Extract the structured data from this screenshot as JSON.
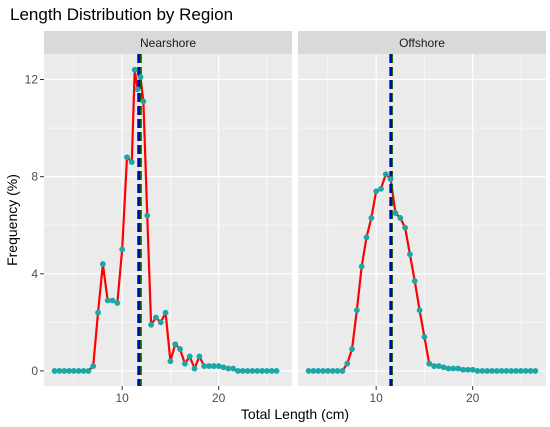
{
  "chart_data": {
    "type": "line",
    "title": "Length Distribution by Region",
    "xlabel": "Total Length (cm)",
    "ylabel": "Frequency (%)",
    "xlim": [
      1.9,
      27.6
    ],
    "ylim": [
      -0.62,
      13.05
    ],
    "x_ticks": [
      10,
      20
    ],
    "y_ticks": [
      0,
      4,
      8,
      12
    ],
    "colors": {
      "panel_bg": "#EBEBEB",
      "strip_bg": "#D9D9D9",
      "grid": "#FFFFFF",
      "line": "#FF0000",
      "points": "#1BA7A7",
      "mean_line": "#0000CC",
      "median_line": "#006400"
    },
    "panels": [
      {
        "label": "Nearshore",
        "mean": 11.7,
        "median": 11.9,
        "x": [
          3,
          3.5,
          4,
          4.5,
          5,
          5.5,
          6,
          6.5,
          7,
          7.5,
          8,
          8.5,
          9,
          9.5,
          10,
          10.5,
          11,
          11.3,
          11.6,
          11.9,
          12.2,
          12.6,
          13,
          13.5,
          14,
          14.5,
          15,
          15.5,
          16,
          16.5,
          17,
          17.5,
          18,
          18.5,
          19,
          19.5,
          20,
          20.5,
          21,
          21.5,
          22,
          22.5,
          23,
          23.5,
          24,
          24.5,
          25,
          25.5,
          26
        ],
        "y": [
          0,
          0,
          0,
          0,
          0,
          0,
          0,
          0,
          0.2,
          2.4,
          4.4,
          2.9,
          2.9,
          2.8,
          5.0,
          8.8,
          8.6,
          12.4,
          11.6,
          12.1,
          11.1,
          6.4,
          1.9,
          2.2,
          2.0,
          2.4,
          0.4,
          1.1,
          0.9,
          0.3,
          0.6,
          0.1,
          0.6,
          0.2,
          0.2,
          0.2,
          0.2,
          0.15,
          0.1,
          0.1,
          0,
          0,
          0,
          0,
          0,
          0,
          0,
          0,
          0
        ]
      },
      {
        "label": "Offshore",
        "mean": 11.5,
        "median": 11.6,
        "x": [
          3,
          3.5,
          4,
          4.5,
          5,
          5.5,
          6,
          6.5,
          7,
          7.5,
          8,
          8.5,
          9,
          9.5,
          10,
          10.5,
          11,
          11.5,
          12,
          12.5,
          13,
          13.5,
          14,
          14.5,
          15,
          15.5,
          16,
          16.5,
          17,
          17.5,
          18,
          18.5,
          19,
          19.5,
          20,
          20.5,
          21,
          21.5,
          22,
          22.5,
          23,
          23.5,
          24,
          24.5,
          25,
          25.5,
          26,
          26.5
        ],
        "y": [
          0,
          0,
          0,
          0,
          0,
          0,
          0,
          0,
          0.3,
          0.9,
          2.5,
          4.3,
          5.5,
          6.3,
          7.4,
          7.5,
          8.1,
          7.9,
          6.5,
          6.3,
          5.9,
          4.8,
          3.7,
          2.5,
          1.4,
          0.3,
          0.2,
          0.2,
          0.15,
          0.1,
          0.1,
          0.1,
          0.05,
          0.05,
          0.05,
          0,
          0,
          0,
          0,
          0,
          0,
          0,
          0,
          0,
          0,
          0,
          0,
          0
        ]
      }
    ]
  }
}
